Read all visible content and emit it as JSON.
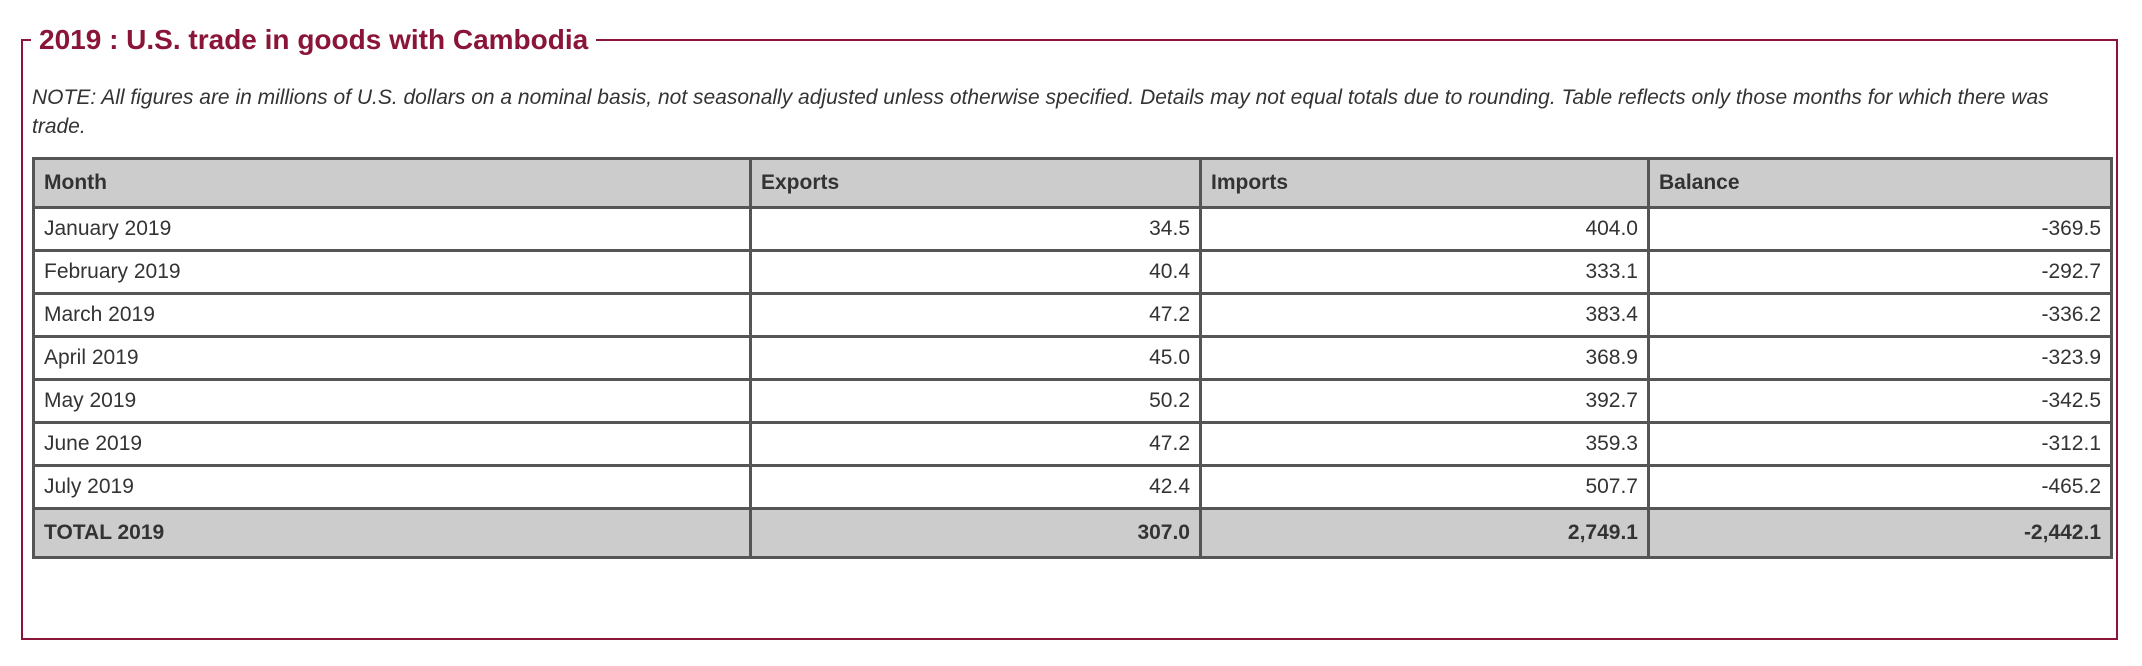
{
  "title": "2019 : U.S. trade in goods with Cambodia",
  "note": "NOTE: All figures are in millions of U.S. dollars on a nominal basis, not seasonally adjusted unless otherwise specified. Details may not equal totals due to rounding. Table reflects only those months for which there was trade.",
  "table": {
    "headers": [
      "Month",
      "Exports",
      "Imports",
      "Balance"
    ],
    "rows": [
      {
        "month": "January 2019",
        "exports": "34.5",
        "imports": "404.0",
        "balance": "-369.5"
      },
      {
        "month": "February 2019",
        "exports": "40.4",
        "imports": "333.1",
        "balance": "-292.7"
      },
      {
        "month": "March 2019",
        "exports": "47.2",
        "imports": "383.4",
        "balance": "-336.2"
      },
      {
        "month": "April 2019",
        "exports": "45.0",
        "imports": "368.9",
        "balance": "-323.9"
      },
      {
        "month": "May 2019",
        "exports": "50.2",
        "imports": "392.7",
        "balance": "-342.5"
      },
      {
        "month": "June 2019",
        "exports": "47.2",
        "imports": "359.3",
        "balance": "-312.1"
      },
      {
        "month": "July 2019",
        "exports": "42.4",
        "imports": "507.7",
        "balance": "-465.2"
      }
    ],
    "total": {
      "month": "TOTAL 2019",
      "exports": "307.0",
      "imports": "2,749.1",
      "balance": "-2,442.1"
    }
  },
  "colors": {
    "accent": "#8a1538",
    "header_bg": "#cccccc",
    "border": "#555555",
    "text": "#333333"
  }
}
